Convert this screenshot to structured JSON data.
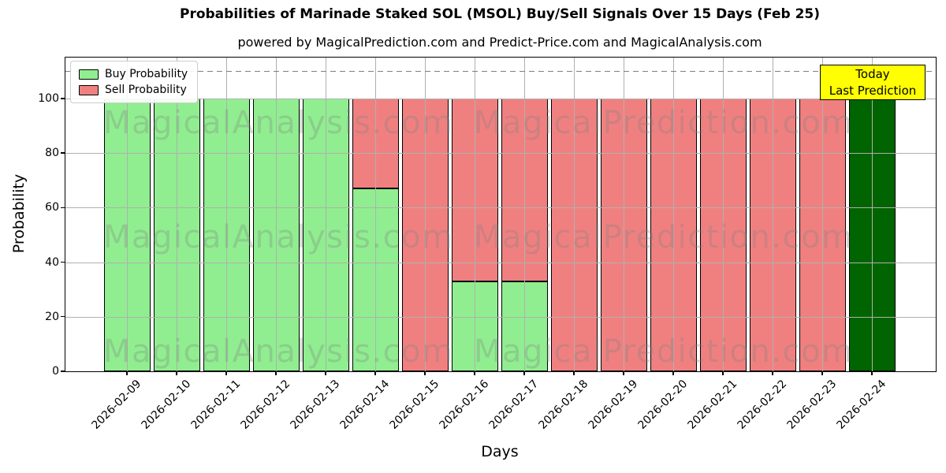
{
  "title": "Probabilities of Marinade Staked SOL (MSOL) Buy/Sell Signals Over 15 Days (Feb 25)",
  "subtitle": "powered by MagicalPrediction.com and Predict-Price.com and MagicalAnalysis.com",
  "legend": {
    "items": [
      {
        "label": "Buy Probability",
        "color": "#90ee90"
      },
      {
        "label": "Sell Probability",
        "color": "#f08080"
      }
    ]
  },
  "annotation": {
    "line1": "Today",
    "line2": "Last Prediction",
    "bg": "#ffff00",
    "border": "#000000"
  },
  "watermarks": {
    "left": "MagicalAnalysis.com",
    "right": "MagicalPrediction.com"
  },
  "colors": {
    "buy": "#90ee90",
    "sell": "#f08080",
    "today_bar": "#006400",
    "bar_edge": "#000000",
    "grid": "#b0b0b0",
    "dashed_line": "#7f7f7f"
  },
  "chart_data": {
    "type": "bar",
    "stacked": true,
    "title": "Probabilities of Marinade Staked SOL (MSOL) Buy/Sell Signals Over 15 Days (Feb 25)",
    "subtitle": "powered by MagicalPrediction.com and Predict-Price.com and MagicalAnalysis.com",
    "xlabel": "Days",
    "ylabel": "Probability",
    "categories": [
      "2026-02-09",
      "2026-02-10",
      "2026-02-11",
      "2026-02-12",
      "2026-02-13",
      "2026-02-14",
      "2026-02-15",
      "2026-02-16",
      "2026-02-17",
      "2026-02-18",
      "2026-02-19",
      "2026-02-20",
      "2026-02-21",
      "2026-02-22",
      "2026-02-23",
      "2026-02-24"
    ],
    "series": [
      {
        "name": "Buy Probability",
        "color": "#90ee90",
        "values": [
          100,
          100,
          100,
          100,
          100,
          67,
          0,
          33,
          33,
          0,
          0,
          0,
          0,
          0,
          0,
          100
        ]
      },
      {
        "name": "Sell Probability",
        "color": "#f08080",
        "values": [
          0,
          0,
          0,
          0,
          0,
          33,
          100,
          67,
          67,
          100,
          100,
          100,
          100,
          100,
          100,
          0
        ]
      }
    ],
    "today_bar_index": 15,
    "today_bar_color": "#006400",
    "yticks": [
      0,
      20,
      40,
      60,
      80,
      100
    ],
    "ylim": [
      0,
      115
    ],
    "dashed_line_y": 110,
    "grid": true,
    "legend_position": "upper left",
    "x_tick_rotation": 45
  }
}
